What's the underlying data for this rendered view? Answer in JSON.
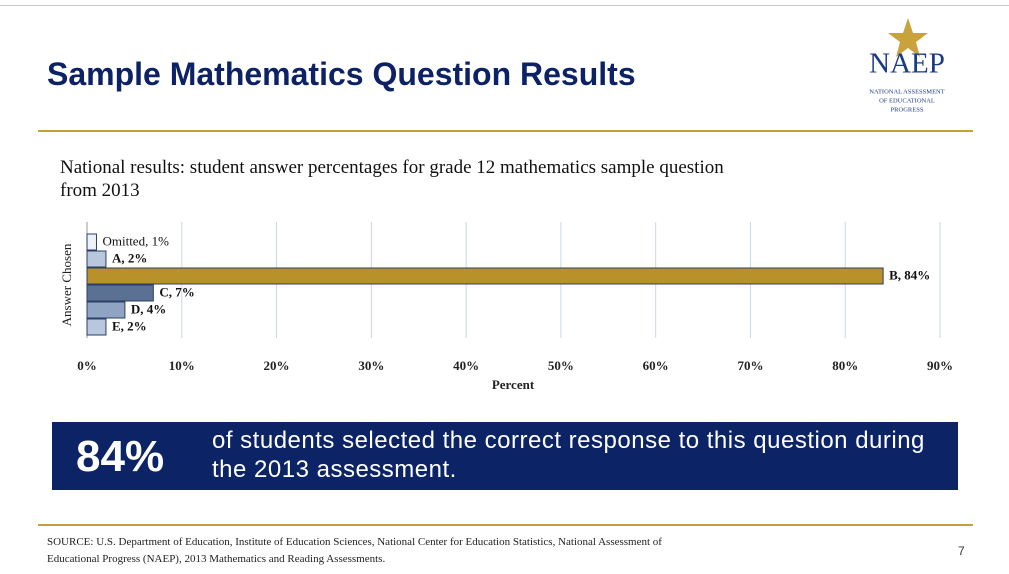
{
  "header": {
    "title": "Sample Mathematics Question Results",
    "logo": {
      "name": "NAEP",
      "lines": [
        "NATIONAL ASSESSMENT",
        "OF EDUCATIONAL",
        "PROGRESS"
      ]
    }
  },
  "chart_data": {
    "type": "hbar",
    "title": "National results: student answer percentages for grade 12 mathematics sample question from 2013",
    "x_label": "Percent",
    "y_label": "Answer Chosen",
    "categories": [
      "Omitted",
      "A",
      "B",
      "C",
      "D",
      "E"
    ],
    "values": [
      1,
      2,
      84,
      7,
      4,
      2
    ],
    "value_labels": [
      "Omitted, 1%",
      "A, 2%",
      "B, 84%",
      "C, 7%",
      "D, 4%",
      "E, 2%"
    ],
    "colors": [
      "#eef2f8",
      "#b9c7dc",
      "#b8912b",
      "#5b7193",
      "#8fa4c2",
      "#b9c7dc"
    ],
    "xlim": [
      0,
      90
    ],
    "xticks": [
      {
        "value": 0,
        "label": "0%"
      },
      {
        "value": 10,
        "label": "10%"
      },
      {
        "value": 20,
        "label": "20%"
      },
      {
        "value": 30,
        "label": "30%"
      },
      {
        "value": 40,
        "label": "40%"
      },
      {
        "value": 50,
        "label": "50%"
      },
      {
        "value": 60,
        "label": "60%"
      },
      {
        "value": 70,
        "label": "70%"
      },
      {
        "value": 80,
        "label": "80%"
      },
      {
        "value": 90,
        "label": "90%"
      }
    ],
    "grid": true
  },
  "callout": {
    "stat": "84%",
    "text": "of students selected the correct response to this question during the 2013 assessment."
  },
  "footer": {
    "source": "SOURCE: U.S. Department of Education, Institute of Education Sciences, National Center for Education Statistics, National Assessment of Educational Progress (NAEP), 2013 Mathematics and Reading Assessments.",
    "page": 7
  }
}
